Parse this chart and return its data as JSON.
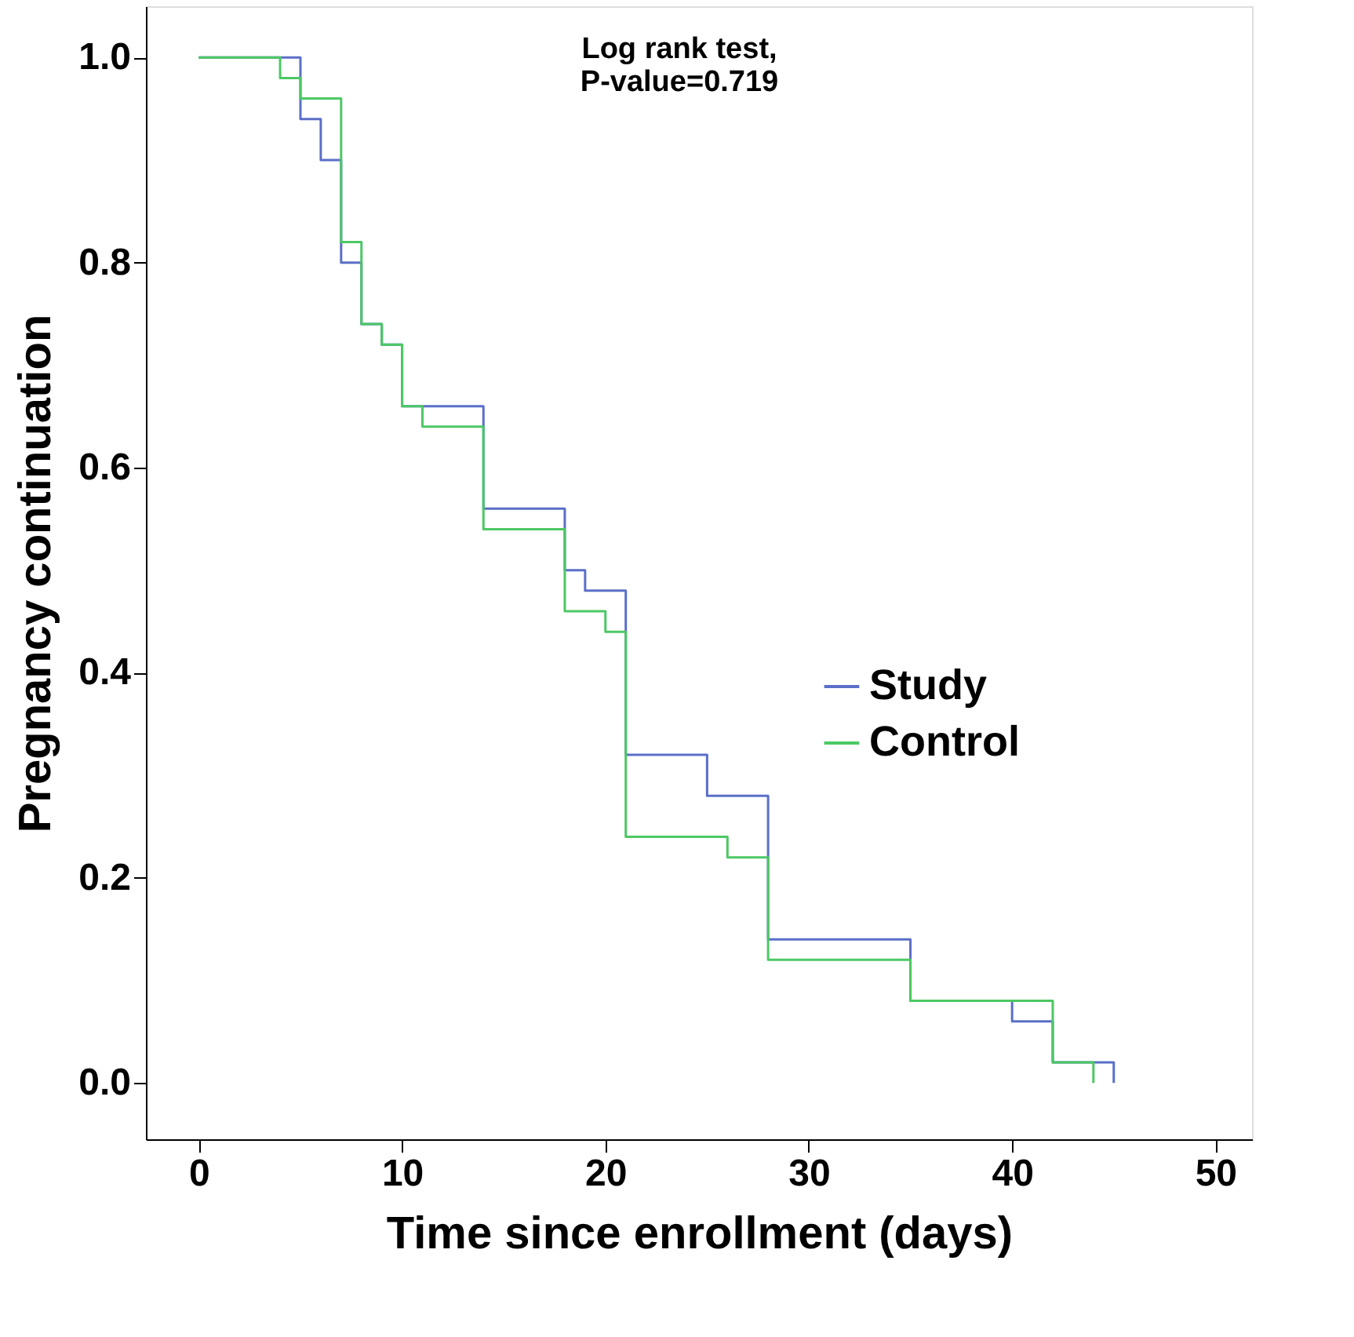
{
  "chart_data": {
    "type": "step",
    "xlabel": "Time since enrollment (days)",
    "ylabel": "Pregnancy continuation",
    "annotations": [
      "Log rank test,\nP-value=0.719"
    ],
    "xlim": [
      -2.6,
      51.8
    ],
    "ylim": [
      -0.055,
      1.05
    ],
    "xticks": [
      0,
      10,
      20,
      30,
      40,
      50
    ],
    "yticks": [
      {
        "value": 0,
        "label": "0.0"
      },
      {
        "value": 0.2,
        "label": "0.2"
      },
      {
        "value": 0.4,
        "label": "0.4"
      },
      {
        "value": 0.6,
        "label": "0.6"
      },
      {
        "value": 0.8,
        "label": "0.8"
      },
      {
        "value": 1,
        "label": "1.0"
      }
    ],
    "grid": false,
    "legend": "right",
    "marker": "none",
    "line_style": "solid",
    "series": [
      {
        "name": "Study",
        "color": "#5b6fc8",
        "x": [
          0,
          5,
          6,
          7,
          8,
          9,
          10,
          14,
          18,
          19,
          21,
          25,
          28,
          35,
          40,
          42,
          45
        ],
        "values": [
          1.0,
          0.94,
          0.9,
          0.8,
          0.74,
          0.72,
          0.66,
          0.56,
          0.5,
          0.48,
          0.32,
          0.28,
          0.14,
          0.08,
          0.06,
          0.02,
          0.0
        ]
      },
      {
        "name": "Control",
        "color": "#4cc864",
        "x": [
          0,
          4,
          5,
          7,
          8,
          9,
          10,
          11,
          14,
          18,
          20,
          21,
          26,
          28,
          35,
          42,
          44
        ],
        "values": [
          1.0,
          0.98,
          0.96,
          0.82,
          0.74,
          0.72,
          0.66,
          0.64,
          0.54,
          0.46,
          0.44,
          0.24,
          0.22,
          0.12,
          0.08,
          0.02,
          0.0
        ]
      }
    ]
  }
}
